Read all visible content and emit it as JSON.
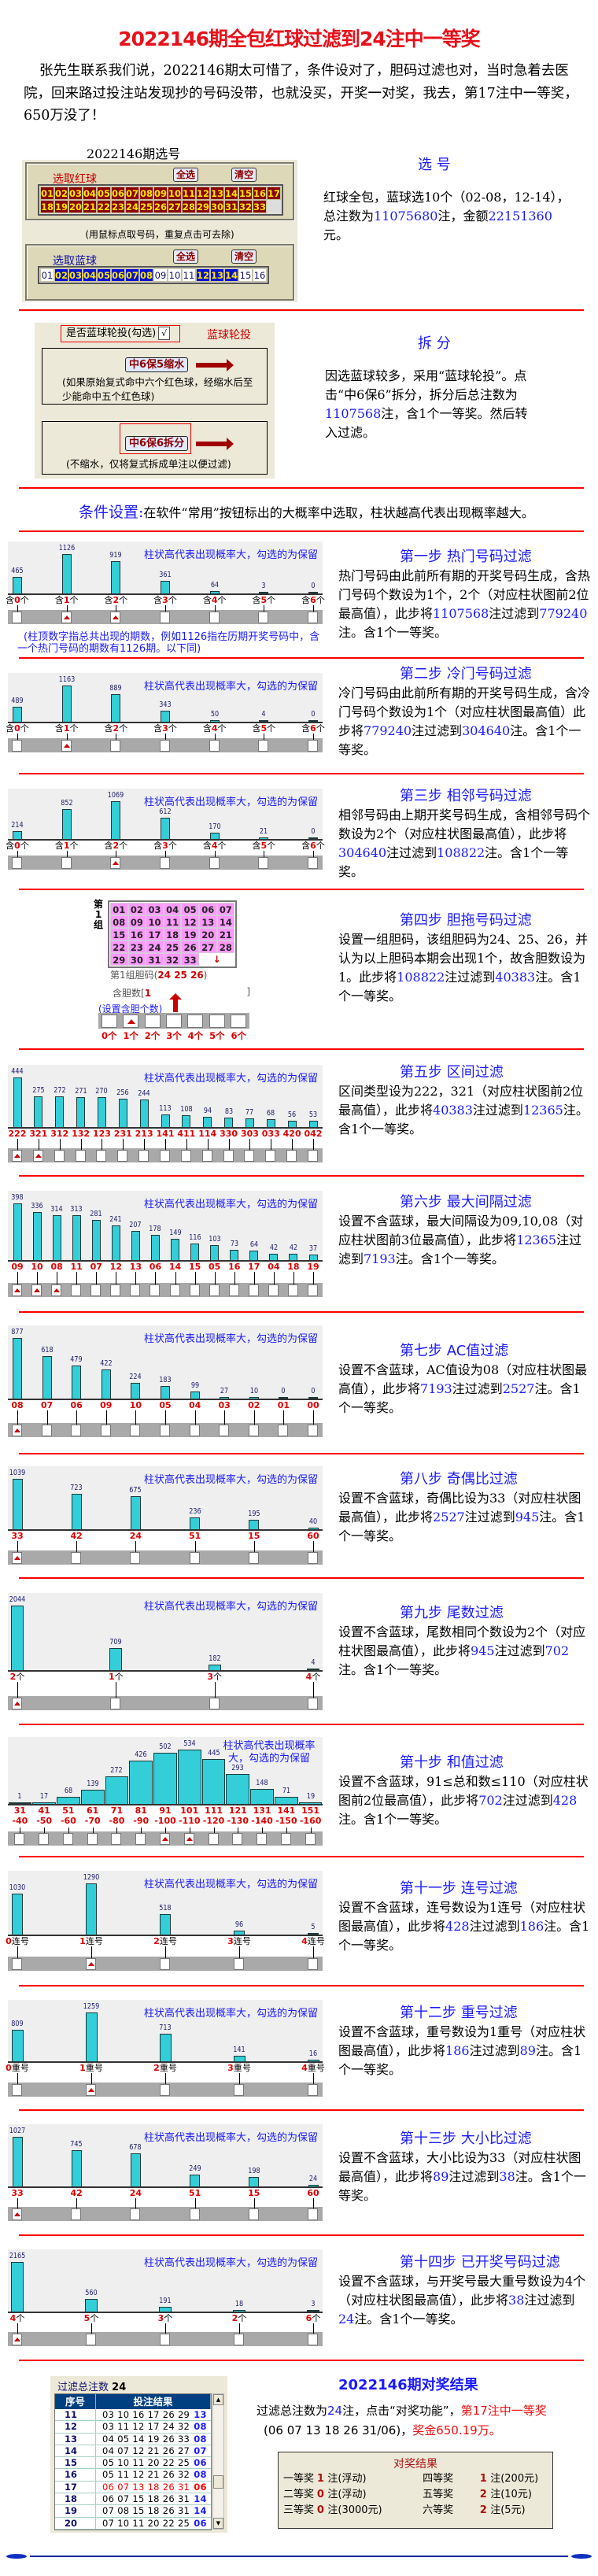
{
  "title": "2022146期全包红球过滤到24注中一等奖",
  "intro": "张先生联系我们说，2022146期太可惜了，条件设对了，胆码过滤也对，当时急着去医院，回来路过投注站发现抄的号码没带，也就没买，开奖一对奖，我去，第17注中一等奖，650万没了！",
  "select": {
    "caption": "2022146期选号",
    "red_label": "选取红球",
    "blue_label": "选取蓝球",
    "select_all": "全选",
    "clear": "清空",
    "hint": "(用鼠标点取号码，重复点击可去除)",
    "red_balls": [
      "01",
      "02",
      "03",
      "04",
      "05",
      "06",
      "07",
      "08",
      "09",
      "10",
      "11",
      "12",
      "13",
      "14",
      "15",
      "16",
      "17",
      "18",
      "19",
      "20",
      "21",
      "22",
      "23",
      "24",
      "25",
      "26",
      "27",
      "28",
      "29",
      "30",
      "31",
      "32",
      "33"
    ],
    "blue_balls": [
      "01",
      "02",
      "03",
      "04",
      "05",
      "06",
      "07",
      "08",
      "09",
      "10",
      "11",
      "12",
      "13",
      "14",
      "15",
      "16"
    ],
    "blue_selected": [
      "02",
      "03",
      "04",
      "05",
      "06",
      "07",
      "08",
      "12",
      "13",
      "14"
    ],
    "heading": "选 号",
    "body": [
      {
        "t": "红球全包，蓝球选10个（02-08，12-14），总注数为"
      },
      {
        "t": "11075680",
        "s": "hl"
      },
      {
        "t": "注，金额"
      },
      {
        "t": "22151360",
        "s": "hl"
      },
      {
        "t": "元。"
      }
    ]
  },
  "split": {
    "checkbox_label": "是否蓝球轮投(勾选)",
    "checkbox_mark": "√",
    "rotate_label": "蓝球轮投",
    "btn1": "中6保5缩水",
    "note1": "(如果原始复式命中六个红色球，经缩水后至少能命中五个红色球)",
    "btn2": "中6保6拆分",
    "note2": "(不缩水，仅将复式拆成单注以便过滤)",
    "heading": "拆 分",
    "body": [
      {
        "t": "因选蓝球较多，采用“蓝球轮投”。点击“中6保6”拆分，拆分后总注数为"
      },
      {
        "t": "1107568",
        "s": "hl"
      },
      {
        "t": "注，含1个一等奖。然后转入过滤。"
      }
    ]
  },
  "condition": {
    "label": "条件设置:",
    "text": "在软件“常用”按钮标出的大概率中选取，柱状越高代表出现概率越大。"
  },
  "chart_caption": "柱状高代表出现概率大，勾选的为保留",
  "chart_note": "(柱顶数字指总共出现的期数，例如1126指在历期开奖号码中，含一个热门号码的期数有1126期。以下同)",
  "steps": [
    {
      "heading": "第一步 热门号码过滤",
      "body": [
        {
          "t": "热门号码由此前所有期的开奖号码生成，含热门号码个数设为1个，2个（对应柱状图前2位最高值），此步将"
        },
        {
          "t": "1107568",
          "s": "hl"
        },
        {
          "t": "注过滤到"
        },
        {
          "t": "779240",
          "s": "hl"
        },
        {
          "t": "注。含1个一等奖。"
        }
      ]
    },
    {
      "heading": "第二步 冷门号码过滤",
      "body": [
        {
          "t": "冷门号码由此前所有期的开奖号码生成，含冷门号码个数设为1个（对应柱状图最高值）此步将"
        },
        {
          "t": "779240",
          "s": "hl"
        },
        {
          "t": "注过滤到"
        },
        {
          "t": "304640",
          "s": "hl"
        },
        {
          "t": "注。含1个一等奖。"
        }
      ]
    },
    {
      "heading": "第三步 相邻号码过滤",
      "body": [
        {
          "t": "相邻号码由上期开奖号码生成，含相邻号码个数设为2个（对应柱状图最高值），此步将"
        },
        {
          "t": "304640",
          "s": "hl"
        },
        {
          "t": "注过滤到"
        },
        {
          "t": "108822",
          "s": "hl"
        },
        {
          "t": "注。含1个一等奖。"
        }
      ]
    },
    {
      "heading": "第四步 胆拖号码过滤",
      "body": [
        {
          "t": "设置一组胆码，该组胆码为24、25、26，并认为以上胆码本期会出现1个，故含胆数设为1。此步将"
        },
        {
          "t": "108822",
          "s": "hl"
        },
        {
          "t": "注过滤到"
        },
        {
          "t": "40383",
          "s": "hl"
        },
        {
          "t": "注。含1个一等奖。"
        }
      ]
    },
    {
      "heading": "第五步 区间过滤",
      "body": [
        {
          "t": "区间类型设为222，321（对应柱状图前2位最高值），此步将"
        },
        {
          "t": "40383",
          "s": "hl"
        },
        {
          "t": "注过滤到"
        },
        {
          "t": "12365",
          "s": "hl"
        },
        {
          "t": "注。含1个一等奖。"
        }
      ]
    },
    {
      "heading": "第六步 最大间隔过滤",
      "body": [
        {
          "t": "设置不含蓝球，最大间隔设为09,10,08（对应柱状图前3位最高值），此步将"
        },
        {
          "t": "12365",
          "s": "hl"
        },
        {
          "t": "注过滤到"
        },
        {
          "t": "7193",
          "s": "hl"
        },
        {
          "t": "注。含1个一等奖。"
        }
      ]
    },
    {
      "heading": "第七步 AC值过滤",
      "body": [
        {
          "t": "设置不含蓝球，AC值设为08（对应柱状图最高值），此步将"
        },
        {
          "t": "7193",
          "s": "hl"
        },
        {
          "t": "注过滤到"
        },
        {
          "t": "2527",
          "s": "hl"
        },
        {
          "t": "注。含1个一等奖。"
        }
      ]
    },
    {
      "heading": "第八步 奇偶比过滤",
      "body": [
        {
          "t": "设置不含蓝球，奇偶比设为33（对应柱状图最高值），此步将"
        },
        {
          "t": "2527",
          "s": "hl"
        },
        {
          "t": "注过滤到"
        },
        {
          "t": "945",
          "s": "hl"
        },
        {
          "t": "注。含1个一等奖。"
        }
      ]
    },
    {
      "heading": "第九步 尾数过滤",
      "body": [
        {
          "t": "设置不含蓝球，尾数相同个数设为2个（对应柱状图最高值），此步将"
        },
        {
          "t": "945",
          "s": "hl"
        },
        {
          "t": "注过滤到"
        },
        {
          "t": "702",
          "s": "hl"
        },
        {
          "t": "注。含1个一等奖。"
        }
      ]
    },
    {
      "heading": "第十步 和值过滤",
      "body": [
        {
          "t": "设置不含蓝球，91≤总和数≤110（对应柱状图前2位最高值），此步将"
        },
        {
          "t": "702",
          "s": "hl"
        },
        {
          "t": "注过滤到"
        },
        {
          "t": "428",
          "s": "hl"
        },
        {
          "t": "注。含1个一等奖。"
        }
      ]
    },
    {
      "heading": "第十一步 连号过滤",
      "body": [
        {
          "t": "设置不含蓝球，连号数设为1连号（对应柱状图最高值），此步将"
        },
        {
          "t": "428",
          "s": "hl"
        },
        {
          "t": "注过滤到"
        },
        {
          "t": "186",
          "s": "hl"
        },
        {
          "t": "注。含1个一等奖。"
        }
      ]
    },
    {
      "heading": "第十二步 重号过滤",
      "body": [
        {
          "t": "设置不含蓝球，重号数设为1重号（对应柱状图最高值），此步将"
        },
        {
          "t": "186",
          "s": "hl"
        },
        {
          "t": "注过滤到"
        },
        {
          "t": "89",
          "s": "hl"
        },
        {
          "t": "注。含1个一等奖。"
        }
      ]
    },
    {
      "heading": "第十三步 大小比过滤",
      "body": [
        {
          "t": "设置不含蓝球，大小比设为33（对应柱状图最高值），此步将"
        },
        {
          "t": "89",
          "s": "hl"
        },
        {
          "t": "注过滤到"
        },
        {
          "t": "38",
          "s": "hl"
        },
        {
          "t": "注。含1个一等奖。"
        }
      ]
    },
    {
      "heading": "第十四步 已开奖号码过滤",
      "body": [
        {
          "t": "设置不含蓝球，与开奖号最大重号数设为4个（对应柱状图最高值），此步将"
        },
        {
          "t": "38",
          "s": "hl"
        },
        {
          "t": "注过滤到"
        },
        {
          "t": "24",
          "s": "hl"
        },
        {
          "t": "注。含1个一等奖。"
        }
      ]
    }
  ],
  "dan": {
    "group_label": "第1组",
    "numbers": [
      "01",
      "02",
      "03",
      "04",
      "05",
      "06",
      "07",
      "08",
      "09",
      "10",
      "11",
      "12",
      "13",
      "14",
      "15",
      "16",
      "17",
      "18",
      "19",
      "20",
      "21",
      "22",
      "23",
      "24",
      "25",
      "26",
      "27",
      "28",
      "29",
      "30",
      "31",
      "32",
      "33"
    ],
    "arrow": "↓",
    "dan_label": "第1组胆码(",
    "dan_numbers": "24 25 26",
    "dan_close": ")",
    "count_label": "含胆数[",
    "count_value": "1",
    "count_close": "]",
    "set_hint": "(设置含胆个数)",
    "options": [
      "0个",
      "1个",
      "2个",
      "3个",
      "4个",
      "5个",
      "6个"
    ],
    "checked": [
      1
    ]
  },
  "chart_data": [
    {
      "type": "bar",
      "title": "热门号码",
      "label_prefix": "含",
      "label_suffix": "个",
      "categories": [
        "0",
        "1",
        "2",
        "3",
        "4",
        "5",
        "6"
      ],
      "values": [
        465,
        1126,
        919,
        361,
        64,
        3,
        0
      ],
      "checked": [
        1,
        2
      ]
    },
    {
      "type": "bar",
      "title": "冷门号码",
      "label_prefix": "含",
      "label_suffix": "个",
      "categories": [
        "0",
        "1",
        "2",
        "3",
        "4",
        "5",
        "6"
      ],
      "values": [
        489,
        1163,
        889,
        343,
        50,
        4,
        0
      ],
      "checked": [
        1
      ]
    },
    {
      "type": "bar",
      "title": "相邻号码",
      "label_prefix": "含",
      "label_suffix": "个",
      "categories": [
        "0",
        "1",
        "2",
        "3",
        "4",
        "5",
        "6"
      ],
      "values": [
        214,
        852,
        1069,
        612,
        170,
        21,
        0
      ],
      "checked": [
        2
      ]
    },
    {
      "type": "bar",
      "title": "区间",
      "label_prefix": "",
      "label_suffix": "",
      "categories": [
        "222",
        "321",
        "312",
        "132",
        "123",
        "231",
        "213",
        "141",
        "411",
        "114",
        "330",
        "303",
        "033",
        "420",
        "042"
      ],
      "values": [
        444,
        275,
        272,
        271,
        270,
        256,
        244,
        113,
        108,
        94,
        83,
        77,
        68,
        56,
        53
      ],
      "checked": [
        0,
        1
      ]
    },
    {
      "type": "bar",
      "title": "最大间隔",
      "label_prefix": "",
      "label_suffix": "",
      "categories": [
        "09",
        "10",
        "08",
        "11",
        "07",
        "12",
        "13",
        "06",
        "14",
        "15",
        "05",
        "16",
        "17",
        "04",
        "18",
        "19"
      ],
      "values": [
        398,
        336,
        314,
        313,
        281,
        241,
        207,
        178,
        149,
        116,
        103,
        73,
        64,
        42,
        42,
        37
      ],
      "checked": [
        0,
        1,
        2
      ]
    },
    {
      "type": "bar",
      "title": "AC值",
      "label_prefix": "",
      "label_suffix": "",
      "categories": [
        "08",
        "07",
        "06",
        "09",
        "10",
        "05",
        "04",
        "03",
        "02",
        "01",
        "00"
      ],
      "values": [
        877,
        618,
        479,
        422,
        224,
        183,
        99,
        27,
        10,
        0,
        0
      ],
      "checked": [
        0
      ]
    },
    {
      "type": "bar",
      "title": "奇偶比",
      "label_prefix": "",
      "label_suffix": "",
      "categories": [
        "33",
        "42",
        "24",
        "51",
        "15",
        "60"
      ],
      "values": [
        1039,
        723,
        675,
        236,
        195,
        40
      ],
      "checked": [
        0
      ]
    },
    {
      "type": "bar",
      "title": "尾数",
      "label_prefix": "",
      "label_suffix": "个",
      "categories": [
        "2",
        "1",
        "3",
        "4"
      ],
      "values": [
        2044,
        709,
        182,
        4
      ],
      "checked": [
        0
      ]
    },
    {
      "type": "histogram",
      "title": "和值",
      "label_prefix": "",
      "label_suffix": "",
      "categories": [
        "31-40",
        "41-50",
        "51-60",
        "61-70",
        "71-80",
        "81-90",
        "91-100",
        "101-110",
        "111-120",
        "121-130",
        "131-140",
        "141-150",
        "151-160"
      ],
      "values": [
        1,
        17,
        68,
        139,
        272,
        426,
        502,
        534,
        445,
        293,
        148,
        71,
        19
      ],
      "checked": [
        6,
        7
      ]
    },
    {
      "type": "bar",
      "title": "连号",
      "label_prefix": "",
      "label_suffix": "连号",
      "categories": [
        "0",
        "1",
        "2",
        "3",
        "4"
      ],
      "values": [
        1030,
        1290,
        518,
        96,
        5
      ],
      "checked": [
        1
      ]
    },
    {
      "type": "bar",
      "title": "重号",
      "label_prefix": "",
      "label_suffix": "重号",
      "categories": [
        "0",
        "1",
        "2",
        "3",
        "4"
      ],
      "values": [
        809,
        1259,
        713,
        141,
        16
      ],
      "checked": [
        1
      ]
    },
    {
      "type": "bar",
      "title": "大小比",
      "label_prefix": "",
      "label_suffix": "",
      "categories": [
        "33",
        "42",
        "24",
        "51",
        "15",
        "60"
      ],
      "values": [
        1027,
        745,
        678,
        249,
        198,
        24
      ],
      "checked": [
        0
      ]
    },
    {
      "type": "bar",
      "title": "已开奖号码",
      "label_prefix": "",
      "label_suffix": "个",
      "categories": [
        "4",
        "5",
        "3",
        "2",
        "6"
      ],
      "values": [
        2165,
        560,
        191,
        18,
        3
      ],
      "checked": [
        0
      ]
    }
  ],
  "result": {
    "total_label": "过滤总注数",
    "total": "24",
    "headers": [
      "序号",
      "投注结果"
    ],
    "rows": [
      {
        "no": "11",
        "reds": "03 10 16 17 26 29",
        "blue": "13"
      },
      {
        "no": "12",
        "reds": "03 11 12 17 24 32",
        "blue": "08"
      },
      {
        "no": "13",
        "reds": "04 05 14 19 26 33",
        "blue": "08"
      },
      {
        "no": "14",
        "reds": "04 07 12 21 26 27",
        "blue": "07"
      },
      {
        "no": "15",
        "reds": "05 10 11 20 22 25",
        "blue": "06"
      },
      {
        "no": "16",
        "reds": "05 11 12 21 26 32",
        "blue": "08"
      },
      {
        "no": "17",
        "reds": "06 07 13 18 26 31",
        "blue": "06",
        "win": true
      },
      {
        "no": "18",
        "reds": "06 07 15 18 26 31",
        "blue": "14"
      },
      {
        "no": "19",
        "reds": "07 08 15 18 26 31",
        "blue": "14"
      },
      {
        "no": "20",
        "reds": "07 10 11 20 22 25",
        "blue": "06"
      }
    ],
    "heading": "2022146期对奖结果",
    "line1": [
      {
        "t": "过滤总注数为"
      },
      {
        "t": "24",
        "s": "hl"
      },
      {
        "t": "注，点击“对奖功能”，"
      },
      {
        "t": "第17注中一等奖",
        "s": "red"
      }
    ],
    "line2": [
      {
        "t": "(06 07 13 18 26 31/06)，"
      },
      {
        "t": "奖金650.19万。",
        "s": "red"
      }
    ],
    "prize_title": "对奖结果",
    "prizes": [
      {
        "name": "一等奖",
        "count": "1",
        "note": "注(浮动)"
      },
      {
        "name": "四等奖",
        "count": "1",
        "note": "注(200元)"
      },
      {
        "name": "二等奖",
        "count": "0",
        "note": "注(浮动)"
      },
      {
        "name": "五等奖",
        "count": "2",
        "note": "注(10元)"
      },
      {
        "name": "三等奖",
        "count": "0",
        "note": "注(3000元)"
      },
      {
        "name": "六等奖",
        "count": "2",
        "note": "注(5元)"
      }
    ]
  }
}
